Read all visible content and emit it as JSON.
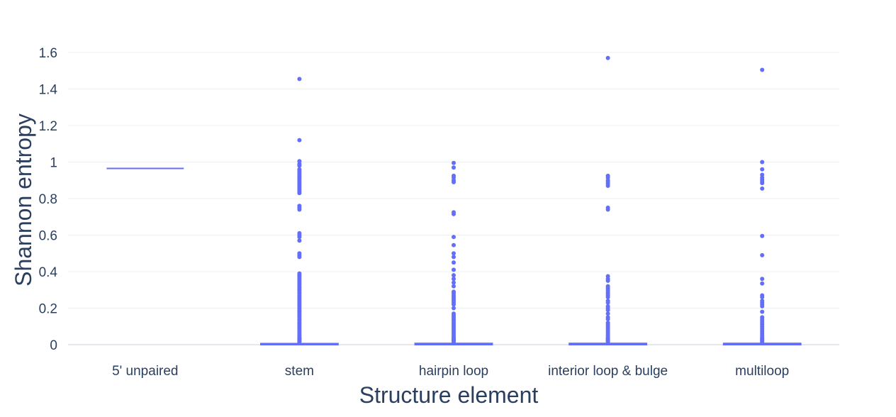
{
  "chart_data": {
    "type": "box",
    "xlabel": "Structure element",
    "ylabel": "Shannon entropy",
    "ylim": [
      0,
      1.6
    ],
    "yticks": [
      0,
      0.2,
      0.4,
      0.6,
      0.8,
      1,
      1.2,
      1.4,
      1.6
    ],
    "ytick_labels": [
      "0",
      "0.2",
      "0.4",
      "0.6",
      "0.8",
      "1",
      "1.2",
      "1.4",
      "1.6"
    ],
    "grid": true,
    "color": "#636efa",
    "categories": [
      "5' unpaired",
      "stem",
      "hairpin loop",
      "interior loop & bulge",
      "multiloop"
    ],
    "boxes": [
      {
        "median": 0.965,
        "q1": 0.965,
        "q3": 0.965,
        "outliers": []
      },
      {
        "median": 0.002,
        "q1": 0.0,
        "q3": 0.006,
        "outliers": [
          1.455,
          1.12,
          1.005,
          0.99,
          0.98,
          0.96,
          0.95,
          0.94,
          0.93,
          0.92,
          0.91,
          0.9,
          0.89,
          0.88,
          0.87,
          0.86,
          0.85,
          0.84,
          0.83,
          0.76,
          0.75,
          0.74,
          0.61,
          0.6,
          0.59,
          0.57,
          0.5,
          0.49,
          0.48,
          0.39,
          0.38,
          0.37,
          0.36,
          0.35,
          0.34,
          0.33,
          0.32,
          0.31,
          0.3,
          0.29,
          0.28,
          0.27,
          0.26,
          0.25,
          0.24,
          0.23,
          0.22,
          0.21,
          0.2,
          0.19,
          0.18,
          0.17,
          0.16,
          0.15,
          0.14,
          0.13,
          0.12,
          0.11,
          0.1,
          0.09,
          0.08,
          0.07,
          0.06,
          0.05,
          0.04,
          0.035,
          0.03,
          0.025,
          0.02,
          0.015
        ]
      },
      {
        "median": 0.002,
        "q1": 0.0,
        "q3": 0.007,
        "outliers": [
          0.995,
          0.97,
          0.925,
          0.915,
          0.9,
          0.89,
          0.725,
          0.715,
          0.59,
          0.545,
          0.5,
          0.48,
          0.45,
          0.41,
          0.38,
          0.36,
          0.34,
          0.32,
          0.29,
          0.28,
          0.27,
          0.26,
          0.25,
          0.24,
          0.23,
          0.22,
          0.2,
          0.17,
          0.16,
          0.15,
          0.14,
          0.13,
          0.12,
          0.11,
          0.1,
          0.09,
          0.08,
          0.07,
          0.06,
          0.05,
          0.04,
          0.035,
          0.03,
          0.025,
          0.02,
          0.015
        ]
      },
      {
        "median": 0.002,
        "q1": 0.0,
        "q3": 0.007,
        "outliers": [
          1.57,
          0.925,
          0.915,
          0.9,
          0.89,
          0.88,
          0.87,
          0.75,
          0.74,
          0.375,
          0.36,
          0.35,
          0.32,
          0.31,
          0.3,
          0.29,
          0.28,
          0.27,
          0.26,
          0.24,
          0.23,
          0.21,
          0.2,
          0.19,
          0.17,
          0.15,
          0.14,
          0.12,
          0.11,
          0.1,
          0.09,
          0.08,
          0.07,
          0.06,
          0.05,
          0.04,
          0.035,
          0.03,
          0.025,
          0.02,
          0.015
        ]
      },
      {
        "median": 0.002,
        "q1": 0.0,
        "q3": 0.007,
        "outliers": [
          1.505,
          1.0,
          0.96,
          0.93,
          0.915,
          0.905,
          0.895,
          0.885,
          0.855,
          0.595,
          0.49,
          0.36,
          0.335,
          0.27,
          0.26,
          0.24,
          0.23,
          0.22,
          0.21,
          0.18,
          0.15,
          0.14,
          0.13,
          0.12,
          0.11,
          0.1,
          0.09,
          0.08,
          0.07,
          0.06,
          0.05,
          0.04,
          0.035,
          0.03,
          0.025,
          0.02,
          0.015
        ]
      }
    ]
  }
}
